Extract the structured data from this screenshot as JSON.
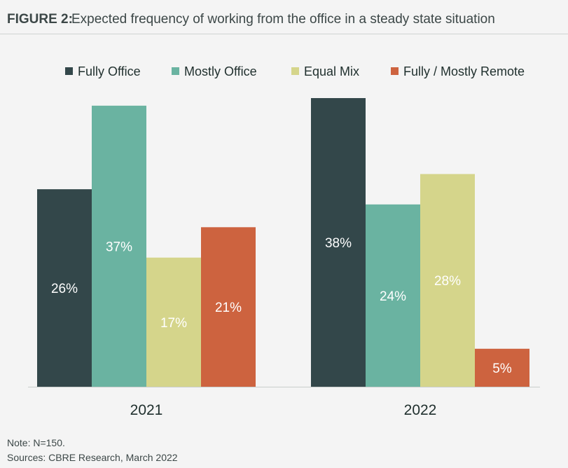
{
  "figure_label": "FIGURE 2:",
  "figure_title": "Expected frequency of working from the office in a steady state situation",
  "note": "Note: N=150.",
  "source": "Sources: CBRE Research, March 2022",
  "chart_data": {
    "type": "bar",
    "categories": [
      "2021",
      "2022"
    ],
    "series": [
      {
        "name": "Fully Office",
        "color": "#33474a",
        "values": [
          26,
          38
        ]
      },
      {
        "name": "Mostly Office",
        "color": "#6ab3a1",
        "values": [
          37,
          24
        ]
      },
      {
        "name": "Equal Mix",
        "color": "#d5d58b",
        "values": [
          17,
          28
        ]
      },
      {
        "name": "Fully / Mostly Remote",
        "color": "#cd633f",
        "values": [
          21,
          5
        ]
      }
    ],
    "data_labels": [
      [
        "26%",
        "38%"
      ],
      [
        "37%",
        "24%"
      ],
      [
        "17%",
        "28%"
      ],
      [
        "21%",
        "5%"
      ]
    ],
    "title": "",
    "xlabel": "",
    "ylabel": "",
    "ylim": [
      0,
      38
    ],
    "grid": false,
    "legend_position": "top"
  }
}
